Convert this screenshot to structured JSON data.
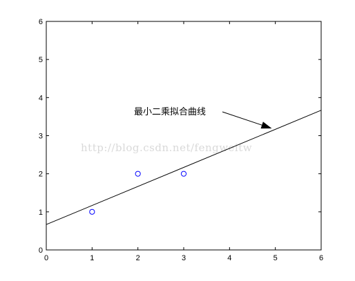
{
  "chart_data": {
    "type": "scatter",
    "title": "",
    "xlabel": "",
    "ylabel": "",
    "xlim": [
      0,
      6
    ],
    "ylim": [
      0,
      6
    ],
    "xticks": [
      "0",
      "1",
      "2",
      "3",
      "4",
      "5",
      "6"
    ],
    "yticks": [
      "0",
      "1",
      "2",
      "3",
      "4",
      "5",
      "6"
    ],
    "grid": false,
    "legend": "none",
    "series": [
      {
        "kind": "scatter",
        "marker": "circle-open",
        "color": "#0000ff",
        "x": [
          1,
          2,
          3
        ],
        "y": [
          1,
          2,
          2
        ]
      },
      {
        "kind": "line",
        "color": "#000000",
        "x": [
          0,
          6
        ],
        "y": [
          0.6667,
          3.6667
        ]
      }
    ],
    "annotations": [
      {
        "text": "最小二乘拟合曲线",
        "arrow_to": [
          4.9,
          3.2
        ]
      }
    ]
  },
  "watermark": "http://blog.csdn.net/fengweitw",
  "colors": {
    "axes": "#000000",
    "marker": "#0000ff",
    "fit_line": "#000000",
    "watermark": "#d9d9d9"
  }
}
